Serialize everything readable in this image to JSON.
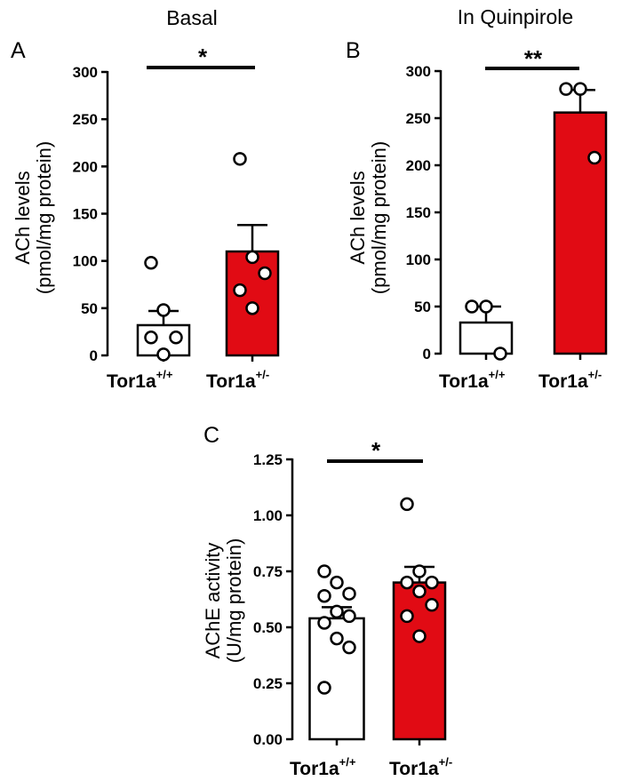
{
  "colors": {
    "fill_wt": "#ffffff",
    "fill_het": "#e10b14",
    "stroke": "#000000"
  },
  "chart_data": [
    {
      "type": "bar",
      "panel": "A",
      "title": "Basal",
      "ylabel_line1": "ACh levels",
      "ylabel_line2": "(pmol/mg protein)",
      "ylim": [
        0,
        300
      ],
      "yticks": [
        "0",
        "50",
        "100",
        "150",
        "200",
        "250",
        "300"
      ],
      "categories": [
        {
          "name": "Tor1a",
          "sup": "+/+",
          "mean": 32,
          "sem": 15,
          "points": [
            98,
            48,
            19,
            19,
            1
          ]
        },
        {
          "name": "Tor1a",
          "sup": "+/-",
          "mean": 110,
          "sem": 28,
          "points": [
            208,
            104,
            87,
            69,
            50
          ]
        }
      ],
      "significance": "*"
    },
    {
      "type": "bar",
      "panel": "B",
      "title": "In Quinpirole",
      "ylabel_line1": "ACh levels",
      "ylabel_line2": "(pmol/mg protein)",
      "ylim": [
        0,
        300
      ],
      "yticks": [
        "0",
        "50",
        "100",
        "150",
        "200",
        "250",
        "300"
      ],
      "categories": [
        {
          "name": "Tor1a",
          "sup": "+/+",
          "mean": 33,
          "sem": 17,
          "points": [
            50,
            50,
            0
          ]
        },
        {
          "name": "Tor1a",
          "sup": "+/-",
          "mean": 256,
          "sem": 24,
          "points": [
            281,
            281,
            208
          ]
        }
      ],
      "significance": "**"
    },
    {
      "type": "bar",
      "panel": "C",
      "title": "",
      "ylabel_line1": "AChE activity",
      "ylabel_line2": "(U/mg protein)",
      "ylim": [
        0,
        1.25
      ],
      "yticks": [
        "0.00",
        "0.25",
        "0.50",
        "0.75",
        "1.00",
        "1.25"
      ],
      "categories": [
        {
          "name": "Tor1a",
          "sup": "+/+",
          "mean": 0.54,
          "sem": 0.05,
          "points": [
            0.75,
            0.7,
            0.65,
            0.64,
            0.57,
            0.55,
            0.52,
            0.45,
            0.41,
            0.23
          ]
        },
        {
          "name": "Tor1a",
          "sup": "+/-",
          "mean": 0.7,
          "sem": 0.07,
          "points": [
            1.05,
            0.75,
            0.7,
            0.7,
            0.66,
            0.6,
            0.55,
            0.46
          ]
        }
      ],
      "significance": "*"
    }
  ]
}
